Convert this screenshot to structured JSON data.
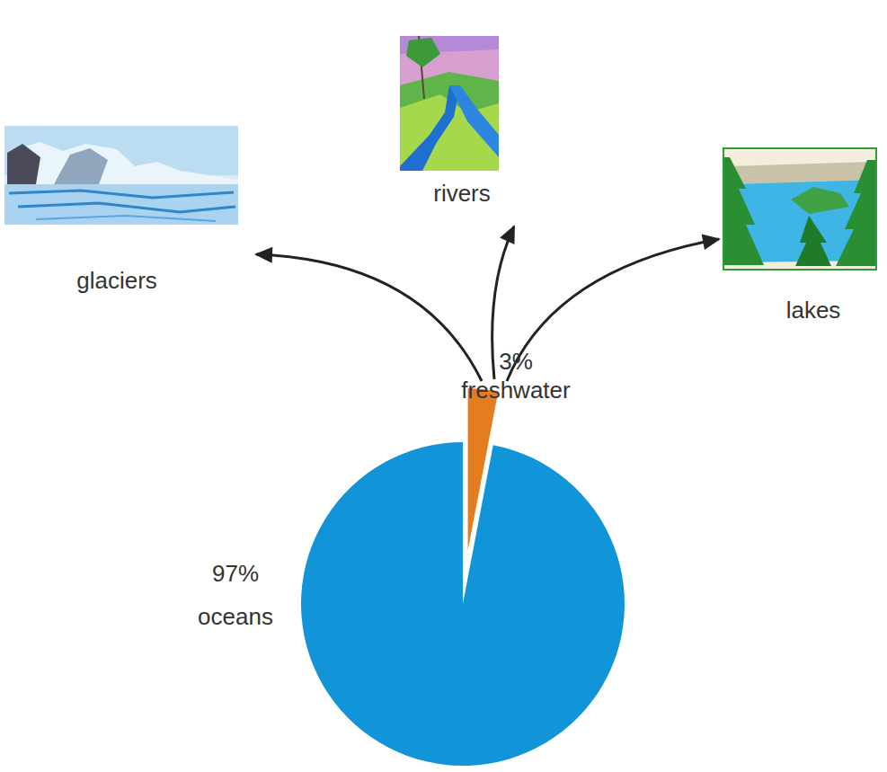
{
  "chart_data": {
    "type": "pie",
    "categories": [
      "oceans",
      "freshwater"
    ],
    "values": [
      97,
      3
    ],
    "value_labels": [
      "97%",
      "3%"
    ],
    "colors": [
      "#1295d8",
      "#e57c1e"
    ],
    "data_labels": true,
    "annotations": [
      "glaciers",
      "rivers",
      "lakes"
    ]
  }
}
